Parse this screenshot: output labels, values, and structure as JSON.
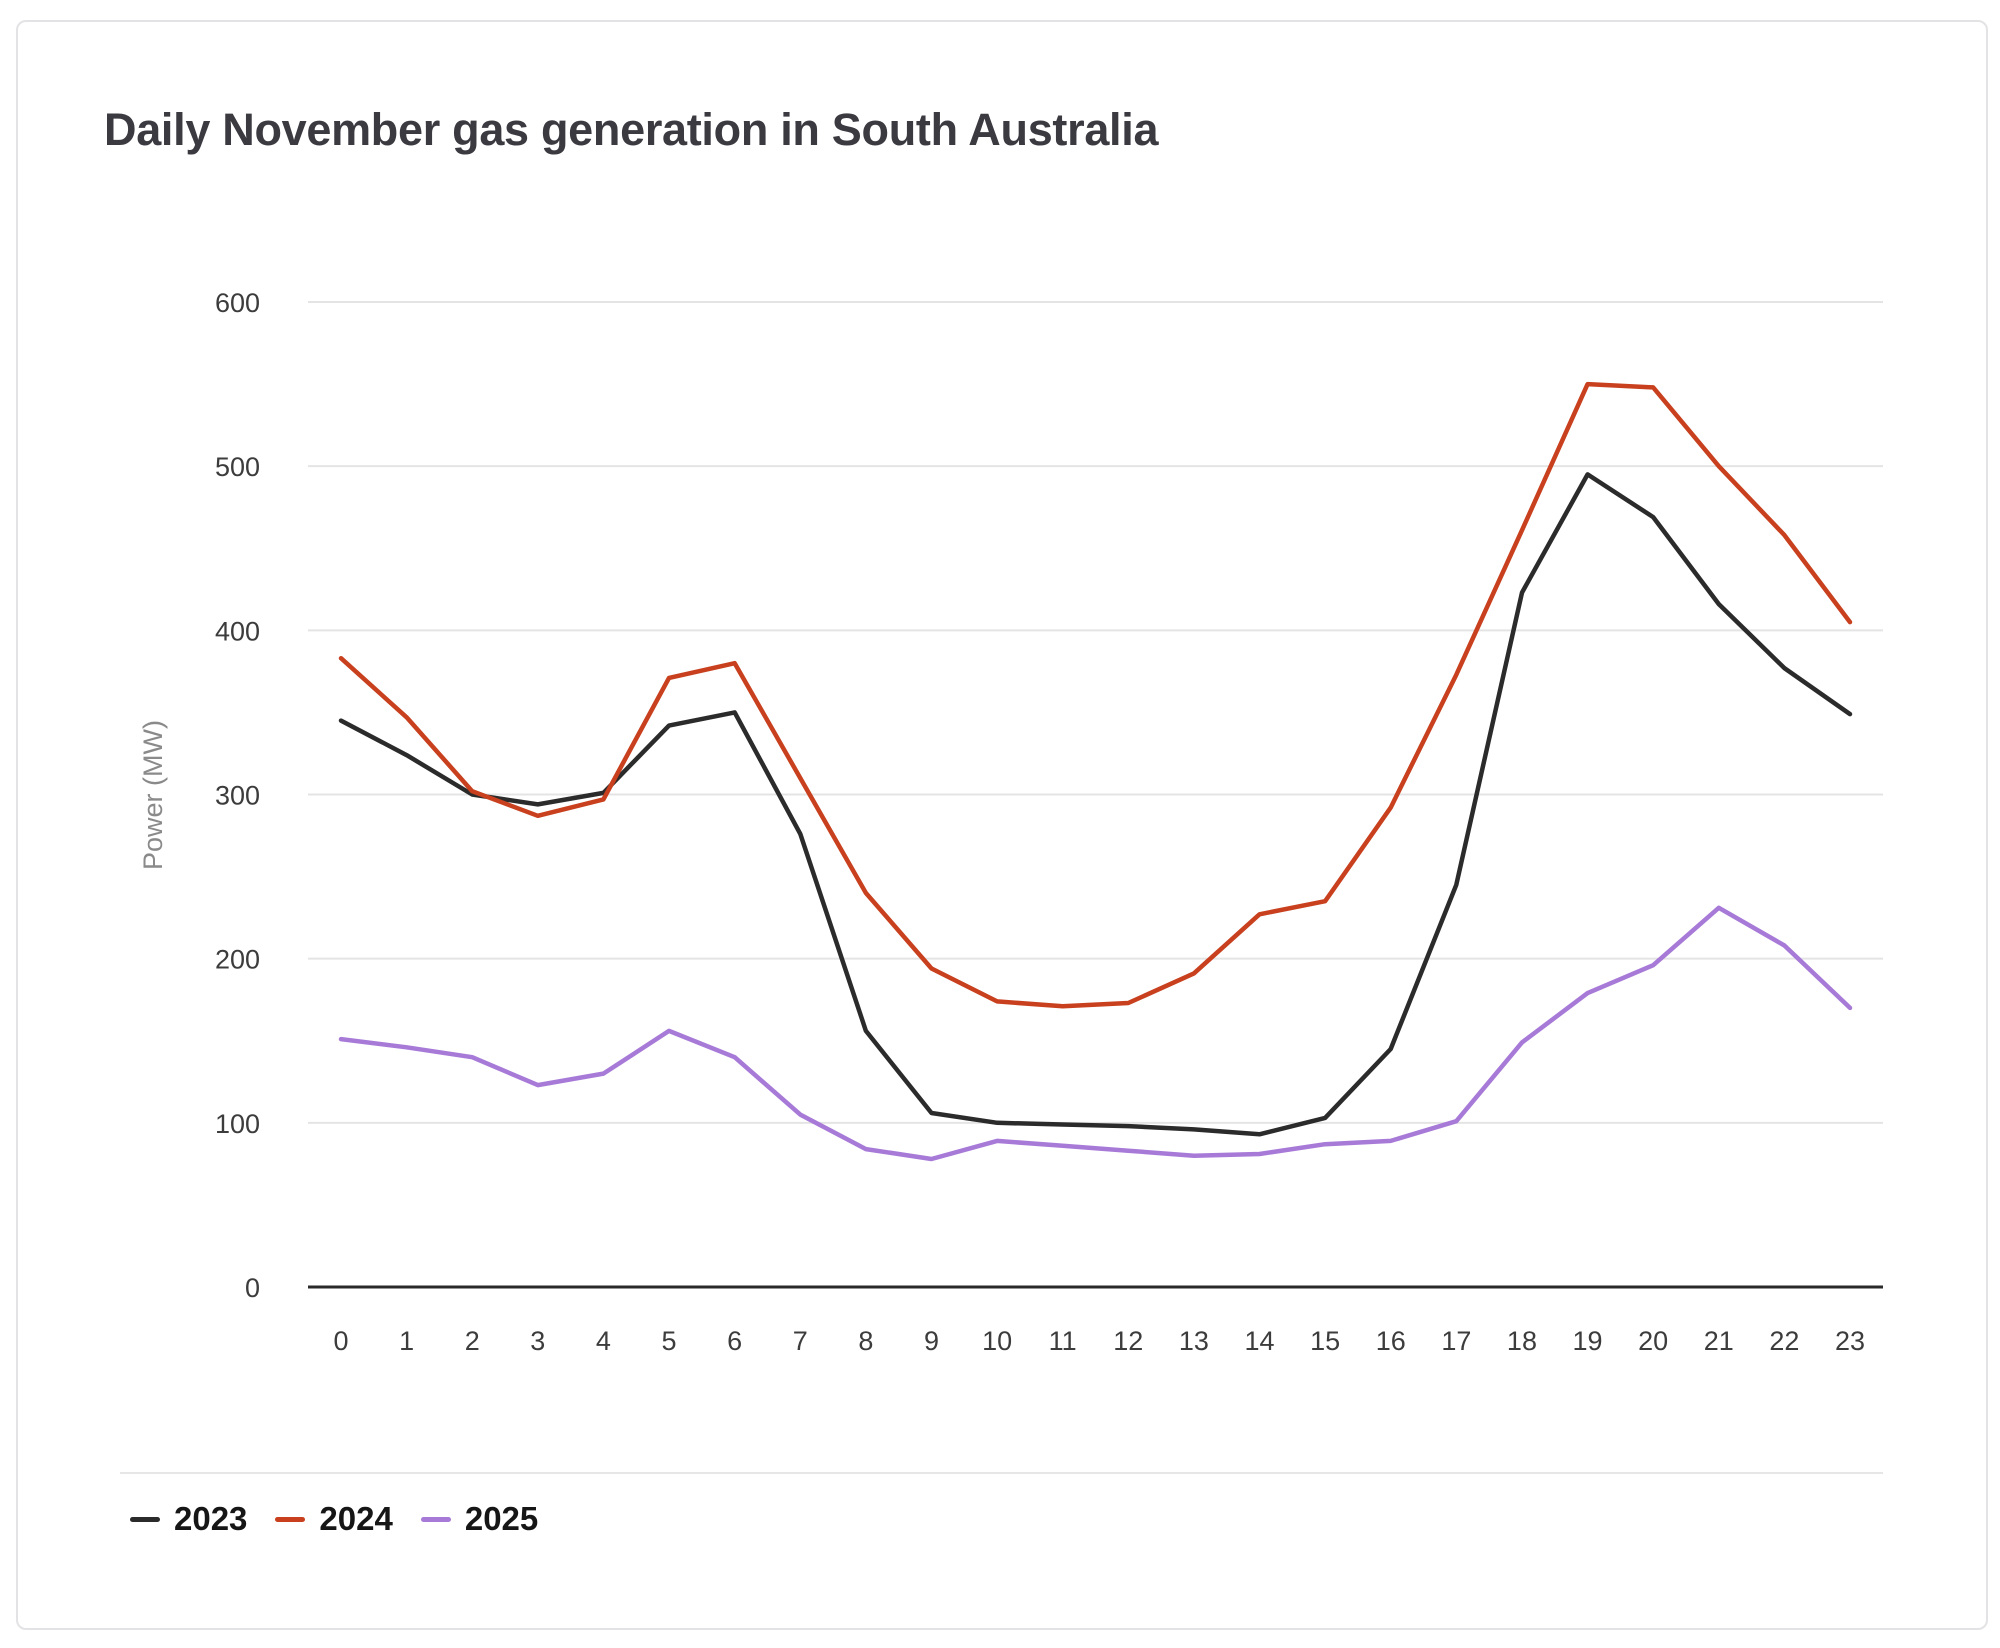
{
  "chart_data": {
    "type": "line",
    "title": "Daily November gas generation in South Australia",
    "xlabel": "",
    "ylabel": "Power (MW)",
    "ylim": [
      0,
      600
    ],
    "yticks": [
      0,
      100,
      200,
      300,
      400,
      500,
      600
    ],
    "x": [
      0,
      1,
      2,
      3,
      4,
      5,
      6,
      7,
      8,
      9,
      10,
      11,
      12,
      13,
      14,
      15,
      16,
      17,
      18,
      19,
      20,
      21,
      22,
      23
    ],
    "grid": true,
    "legend_position": "bottom-left",
    "series": [
      {
        "name": "2023",
        "color": "#2b2b2b",
        "values": [
          345,
          324,
          300,
          294,
          301,
          342,
          350,
          276,
          156,
          106,
          100,
          99,
          98,
          96,
          93,
          103,
          145,
          245,
          423,
          495,
          469,
          416,
          377,
          349
        ]
      },
      {
        "name": "2024",
        "color": "#c8401e",
        "values": [
          383,
          347,
          302,
          287,
          297,
          371,
          380,
          310,
          240,
          194,
          174,
          171,
          173,
          191,
          227,
          235,
          292,
          373,
          461,
          550,
          548,
          500,
          458,
          405
        ]
      },
      {
        "name": "2025",
        "color": "#a77ad8",
        "values": [
          151,
          146,
          140,
          123,
          130,
          156,
          140,
          105,
          84,
          78,
          89,
          86,
          83,
          80,
          81,
          87,
          89,
          101,
          149,
          179,
          196,
          231,
          208,
          170
        ]
      }
    ]
  }
}
